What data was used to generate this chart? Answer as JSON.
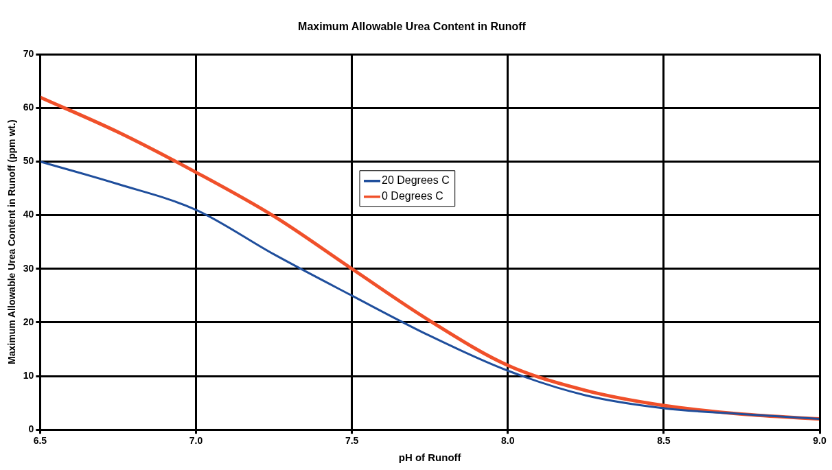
{
  "chart_data": {
    "type": "line",
    "title": "Maximum Allowable Urea Content in Runoff",
    "xlabel": "pH of Runoff",
    "ylabel": "Maximum Allowable Urea Content in Runoff (ppm wt.)",
    "x": [
      6.5,
      6.75,
      7.0,
      7.25,
      7.5,
      7.75,
      8.0,
      8.25,
      8.5,
      8.75,
      9.0
    ],
    "series": [
      {
        "name": "20 Degrees C",
        "color": "#1f4e9c",
        "values": [
          50,
          45.8,
          41,
          32.7,
          25,
          17.5,
          11,
          6.4,
          4,
          2.9,
          2
        ]
      },
      {
        "name": "0 Degrees C",
        "color": "#f0502a",
        "values": [
          62,
          55.5,
          48,
          39.8,
          30,
          20.3,
          12,
          7.3,
          4.5,
          2.9,
          2
        ]
      }
    ],
    "xlim": [
      6.5,
      9.0
    ],
    "xticks": [
      {
        "value": 6.5,
        "label": "6.5"
      },
      {
        "value": 7.0,
        "label": "7.0"
      },
      {
        "value": 7.5,
        "label": "7.5"
      },
      {
        "value": 8.0,
        "label": "8.0"
      },
      {
        "value": 8.5,
        "label": "8.5"
      },
      {
        "value": 9.0,
        "label": "9.0"
      }
    ],
    "ylim": [
      0,
      70
    ],
    "yticks": [
      0,
      10,
      20,
      30,
      40,
      50,
      60,
      70
    ],
    "grid": true,
    "legend": "center",
    "marker": "none",
    "line_style": "solid"
  }
}
